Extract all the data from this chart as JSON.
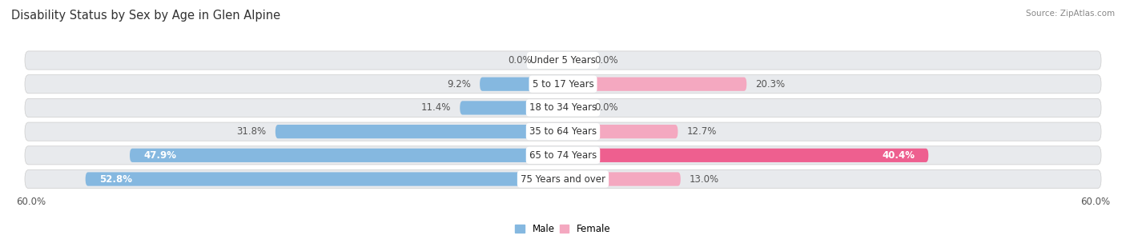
{
  "title": "Disability Status by Sex by Age in Glen Alpine",
  "source": "Source: ZipAtlas.com",
  "categories": [
    "Under 5 Years",
    "5 to 17 Years",
    "18 to 34 Years",
    "35 to 64 Years",
    "65 to 74 Years",
    "75 Years and over"
  ],
  "male_values": [
    0.0,
    9.2,
    11.4,
    31.8,
    47.9,
    52.8
  ],
  "female_values": [
    0.0,
    20.3,
    0.0,
    12.7,
    40.4,
    13.0
  ],
  "male_color": "#85b8e0",
  "female_color_light": "#f4a8c0",
  "female_color_dark": "#ee5f8f",
  "row_bg_color": "#e8eaed",
  "row_bg_alt": "#dde0e5",
  "max_value": 60.0,
  "bar_height": 0.58,
  "label_fontsize": 8.5,
  "title_fontsize": 10.5,
  "source_fontsize": 7.5
}
